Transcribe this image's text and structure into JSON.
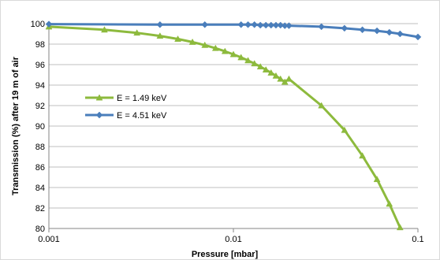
{
  "chart_data": {
    "type": "line",
    "xscale": "log",
    "xlim": [
      0.001,
      0.1
    ],
    "ylim": [
      80,
      100
    ],
    "x_ticks": [
      0.001,
      0.01,
      0.1
    ],
    "x_tick_labels": [
      "0.001",
      "0.01",
      "0.1"
    ],
    "y_ticks": [
      80,
      82,
      84,
      86,
      88,
      90,
      92,
      94,
      96,
      98,
      100
    ],
    "y_tick_labels": [
      "80",
      "82",
      "84",
      "86",
      "88",
      "90",
      "92",
      "94",
      "96",
      "98",
      "100"
    ],
    "xlabel": "Pressure [mbar]",
    "ylabel": "Transmission (%) after 19 m of air",
    "grid": "horizontal",
    "legend_position": "left",
    "series": [
      {
        "name": "E = 1.49 keV",
        "color": "#8dba3d",
        "marker": "triangle",
        "x": [
          0.001,
          0.002,
          0.003,
          0.004,
          0.005,
          0.006,
          0.007,
          0.008,
          0.009,
          0.01,
          0.011,
          0.012,
          0.013,
          0.014,
          0.015,
          0.016,
          0.017,
          0.018,
          0.019,
          0.02,
          0.03,
          0.04,
          0.05,
          0.06,
          0.07,
          0.08
        ],
        "y": [
          99.7,
          99.4,
          99.1,
          98.8,
          98.5,
          98.2,
          97.9,
          97.6,
          97.3,
          97.0,
          96.7,
          96.4,
          96.1,
          95.8,
          95.5,
          95.2,
          94.9,
          94.6,
          94.3,
          94.6,
          92.0,
          89.6,
          87.1,
          84.8,
          82.4,
          80.1
        ]
      },
      {
        "name": "E = 4.51 keV",
        "color": "#4a7ebb",
        "marker": "diamond",
        "x": [
          0.001,
          0.004,
          0.007,
          0.011,
          0.012,
          0.013,
          0.014,
          0.015,
          0.016,
          0.017,
          0.018,
          0.019,
          0.02,
          0.03,
          0.04,
          0.05,
          0.06,
          0.07,
          0.08,
          0.1
        ],
        "y": [
          99.95,
          99.9,
          99.9,
          99.9,
          99.9,
          99.9,
          99.85,
          99.85,
          99.85,
          99.85,
          99.85,
          99.8,
          99.8,
          99.7,
          99.55,
          99.4,
          99.3,
          99.15,
          99.0,
          98.7
        ]
      }
    ]
  }
}
